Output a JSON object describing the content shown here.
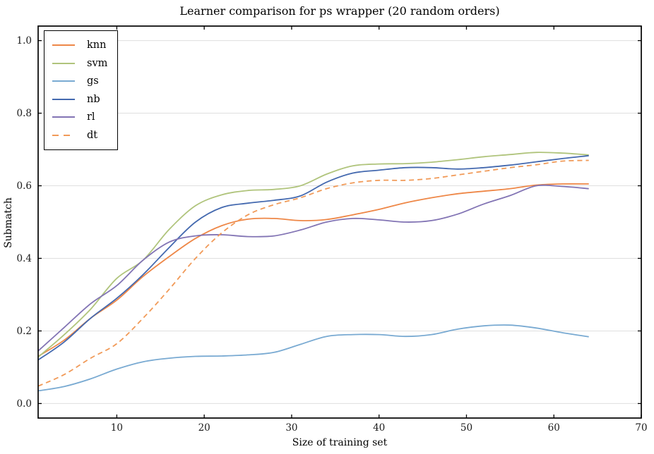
{
  "title": "Learner comparison for ps wrapper (20 random orders)",
  "chart_data": {
    "type": "line",
    "title": "Learner comparison for ps wrapper (20 random orders)",
    "xlabel": "Size of training set",
    "ylabel": "Submatch",
    "xlim": [
      1,
      70
    ],
    "ylim": [
      -0.04,
      1.04
    ],
    "xticks": [
      10,
      20,
      30,
      40,
      50,
      60,
      70
    ],
    "yticks": [
      0.0,
      0.2,
      0.4,
      0.6,
      0.8,
      1.0
    ],
    "ytick_labels": [
      "0.0",
      "0.2",
      "0.4",
      "0.6",
      "0.8",
      "1.0"
    ],
    "grid": "horizontal",
    "legend_position": "upper-left",
    "x": [
      1,
      4,
      7,
      10,
      13,
      16,
      19,
      22,
      25,
      28,
      31,
      34,
      37,
      40,
      43,
      46,
      49,
      52,
      55,
      58,
      61,
      64
    ],
    "series": [
      {
        "name": "knn",
        "color": "#ee8747",
        "dashed": false,
        "values": [
          0.13,
          0.175,
          0.235,
          0.285,
          0.35,
          0.405,
          0.455,
          0.49,
          0.508,
          0.51,
          0.504,
          0.507,
          0.52,
          0.535,
          0.553,
          0.567,
          0.578,
          0.585,
          0.592,
          0.602,
          0.605,
          0.605
        ]
      },
      {
        "name": "svm",
        "color": "#b0c47c",
        "dashed": false,
        "values": [
          0.128,
          0.19,
          0.26,
          0.345,
          0.395,
          0.48,
          0.545,
          0.575,
          0.587,
          0.59,
          0.6,
          0.632,
          0.655,
          0.66,
          0.661,
          0.665,
          0.672,
          0.68,
          0.686,
          0.692,
          0.69,
          0.685
        ]
      },
      {
        "name": "gs",
        "color": "#79aad2",
        "dashed": false,
        "values": [
          0.035,
          0.047,
          0.068,
          0.095,
          0.115,
          0.125,
          0.13,
          0.131,
          0.134,
          0.141,
          0.163,
          0.185,
          0.19,
          0.19,
          0.185,
          0.19,
          0.205,
          0.214,
          0.216,
          0.208,
          0.195,
          0.184
        ]
      },
      {
        "name": "nb",
        "color": "#4469af",
        "dashed": false,
        "values": [
          0.12,
          0.17,
          0.235,
          0.29,
          0.355,
          0.43,
          0.5,
          0.54,
          0.552,
          0.56,
          0.572,
          0.61,
          0.635,
          0.643,
          0.65,
          0.65,
          0.646,
          0.65,
          0.657,
          0.666,
          0.675,
          0.683
        ]
      },
      {
        "name": "rl",
        "color": "#8274b4",
        "dashed": false,
        "values": [
          0.145,
          0.21,
          0.275,
          0.325,
          0.395,
          0.445,
          0.462,
          0.465,
          0.46,
          0.462,
          0.478,
          0.5,
          0.51,
          0.506,
          0.5,
          0.504,
          0.522,
          0.55,
          0.573,
          0.6,
          0.598,
          0.592
        ]
      },
      {
        "name": "dt",
        "color": "#f19a58",
        "dashed": true,
        "values": [
          0.048,
          0.08,
          0.125,
          0.165,
          0.235,
          0.315,
          0.4,
          0.47,
          0.52,
          0.548,
          0.567,
          0.592,
          0.608,
          0.615,
          0.615,
          0.62,
          0.63,
          0.64,
          0.65,
          0.658,
          0.668,
          0.67
        ]
      }
    ],
    "colors": {
      "background": "#ffffff",
      "grid": "#dfdfdf",
      "axis": "#000000",
      "tick_label": "#1a1a1a"
    }
  }
}
